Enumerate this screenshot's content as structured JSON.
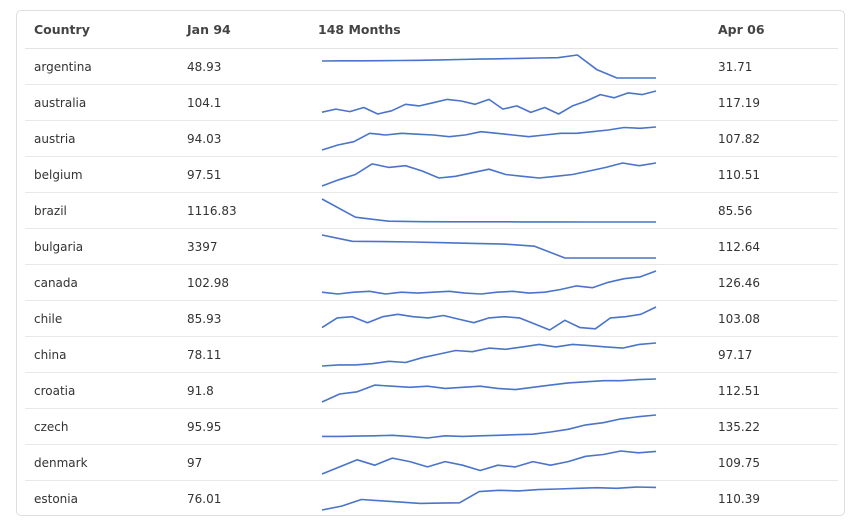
{
  "table": {
    "headers": {
      "country": "Country",
      "start": "Jan 94",
      "trend": "148 Months",
      "end": "Apr 06"
    },
    "line_color": "#4a74c9"
  },
  "chart_data": {
    "type": "table",
    "columns": [
      "Country",
      "Jan 94",
      "148 Months",
      "Apr 06"
    ],
    "rows": [
      {
        "country": "argentina",
        "start": "48.93",
        "end": "31.71",
        "trend": [
          48.9,
          49.1,
          49.1,
          49.2,
          49.4,
          49.6,
          50,
          50.4,
          50.8,
          51.2,
          51.6,
          52,
          52.3,
          55,
          40,
          31.8,
          31.7,
          31.7
        ]
      },
      {
        "country": "australia",
        "start": "104.1",
        "end": "117.19",
        "trend": [
          104.1,
          106,
          104.5,
          107,
          103,
          105,
          109,
          108,
          110,
          112,
          111,
          109,
          112,
          106,
          108,
          104,
          107,
          103,
          108,
          111,
          115,
          113,
          116,
          115,
          117.2
        ]
      },
      {
        "country": "austria",
        "start": "94.03",
        "end": "107.82",
        "trend": [
          94,
          97,
          99,
          104,
          103,
          104,
          103.5,
          103,
          102,
          103,
          105,
          104,
          103,
          102,
          103,
          104,
          104,
          105,
          106,
          107.5,
          107,
          107.8
        ]
      },
      {
        "country": "belgium",
        "start": "97.51",
        "end": "110.51",
        "trend": [
          97.5,
          101,
          104,
          110,
          108,
          109,
          106,
          102,
          103,
          105,
          107,
          104,
          103,
          102,
          103,
          104,
          106,
          108,
          110.5,
          109,
          110.5
        ]
      },
      {
        "country": "brazil",
        "start": "1116.83",
        "end": "85.56",
        "trend": [
          1116.8,
          300,
          120,
          100,
          95,
          93,
          90,
          88,
          87,
          86,
          85.6
        ]
      },
      {
        "country": "bulgaria",
        "start": "3397",
        "end": "112.64",
        "trend": [
          3397,
          2500,
          2450,
          2400,
          2300,
          2200,
          2100,
          1800,
          112.6,
          112.6,
          112.6,
          112.6
        ]
      },
      {
        "country": "canada",
        "start": "102.98",
        "end": "126.46",
        "trend": [
          103,
          101,
          103,
          104,
          101,
          103,
          102,
          103,
          104,
          102,
          101,
          103,
          104,
          102,
          103,
          106,
          110,
          108,
          114,
          118,
          120,
          126.5
        ]
      },
      {
        "country": "chile",
        "start": "85.93",
        "end": "103.08",
        "trend": [
          86,
          94,
          95,
          90,
          95,
          97,
          95,
          94,
          96,
          93,
          90,
          94,
          95,
          94,
          89,
          84,
          92,
          86,
          85,
          94,
          95,
          97,
          103
        ]
      },
      {
        "country": "china",
        "start": "78.11",
        "end": "97.17",
        "trend": [
          78.1,
          79,
          79,
          80,
          82,
          81,
          85,
          88,
          91,
          90,
          93,
          92,
          94,
          96,
          94,
          96,
          95,
          94,
          93,
          96,
          97.2
        ]
      },
      {
        "country": "croatia",
        "start": "91.8",
        "end": "112.51",
        "trend": [
          91.8,
          99,
          101,
          107,
          106,
          105,
          106,
          104,
          105,
          106,
          104,
          103,
          105,
          107,
          109,
          110,
          111,
          111,
          112,
          112.5
        ]
      },
      {
        "country": "czech",
        "start": "95.95",
        "end": "135.22",
        "trend": [
          96,
          96,
          96.5,
          97,
          98,
          96,
          93,
          97,
          96,
          97,
          98,
          99,
          100,
          104,
          109,
          117,
          121,
          128,
          132,
          135.2
        ]
      },
      {
        "country": "denmark",
        "start": "97",
        "end": "109.75",
        "trend": [
          97,
          101,
          105,
          102,
          106,
          104,
          101,
          104,
          102,
          99,
          102,
          101,
          104,
          102,
          104,
          107,
          108,
          110,
          109,
          109.8
        ]
      },
      {
        "country": "estonia",
        "start": "76.01",
        "end": "110.39",
        "trend": [
          76,
          82,
          92,
          90,
          88,
          86,
          86.5,
          87,
          104,
          106,
          105,
          107,
          108,
          109,
          110,
          109,
          111,
          110.4
        ]
      }
    ]
  }
}
